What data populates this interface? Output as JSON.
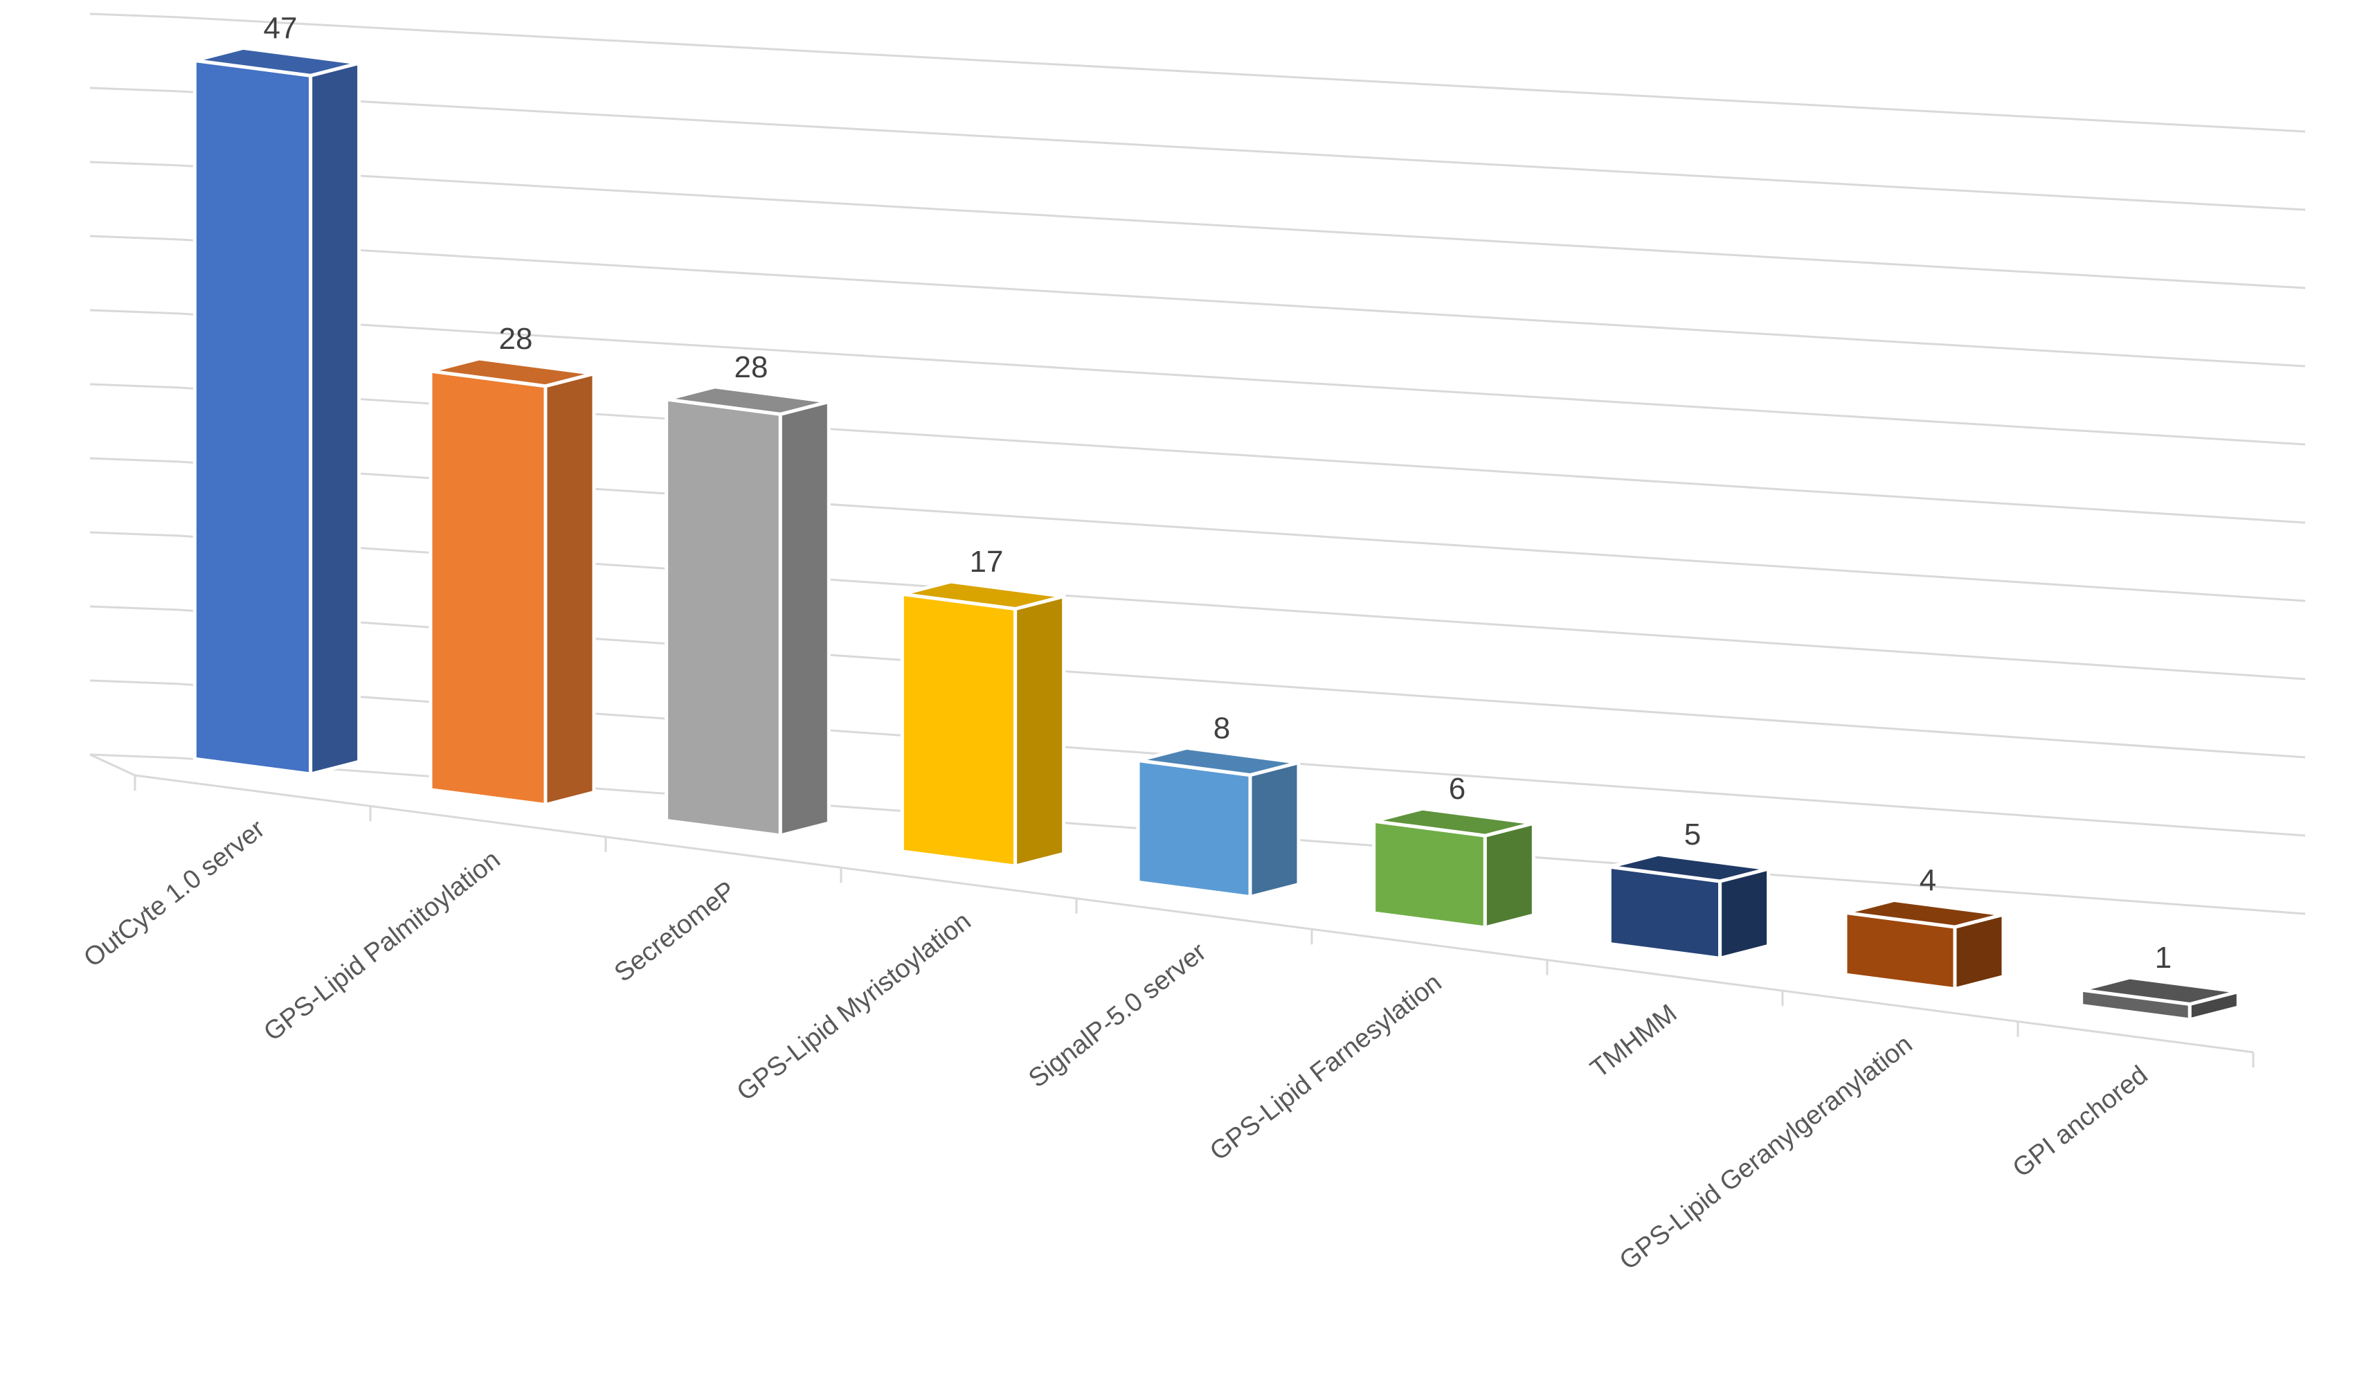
{
  "chart_data": {
    "type": "bar",
    "style": "3d-column",
    "categories": [
      "OutCyte 1.0 server",
      "GPS-Lipid Palmitoylation",
      "SecretomeP",
      "GPS-Lipid Myristoylation",
      "SignalP-5.0 server",
      "GPS-Lipid Farnesylation",
      "TMHMM",
      "GPS-Lipid Geranylgeranylation",
      "GPI  anchored"
    ],
    "values": [
      47,
      28,
      28,
      17,
      8,
      6,
      5,
      4,
      1
    ],
    "data_labels": [
      "47",
      "28",
      "28",
      "17",
      "8",
      "6",
      "5",
      "4",
      "1"
    ],
    "colors": [
      "#4472C4",
      "#ED7D31",
      "#A5A5A5",
      "#FFC000",
      "#5B9BD5",
      "#70AD47",
      "#264478",
      "#9E480E",
      "#636363"
    ],
    "title": "",
    "xlabel": "",
    "ylabel": "",
    "ylim": [
      0,
      50
    ],
    "grid": true,
    "legend": "none"
  }
}
